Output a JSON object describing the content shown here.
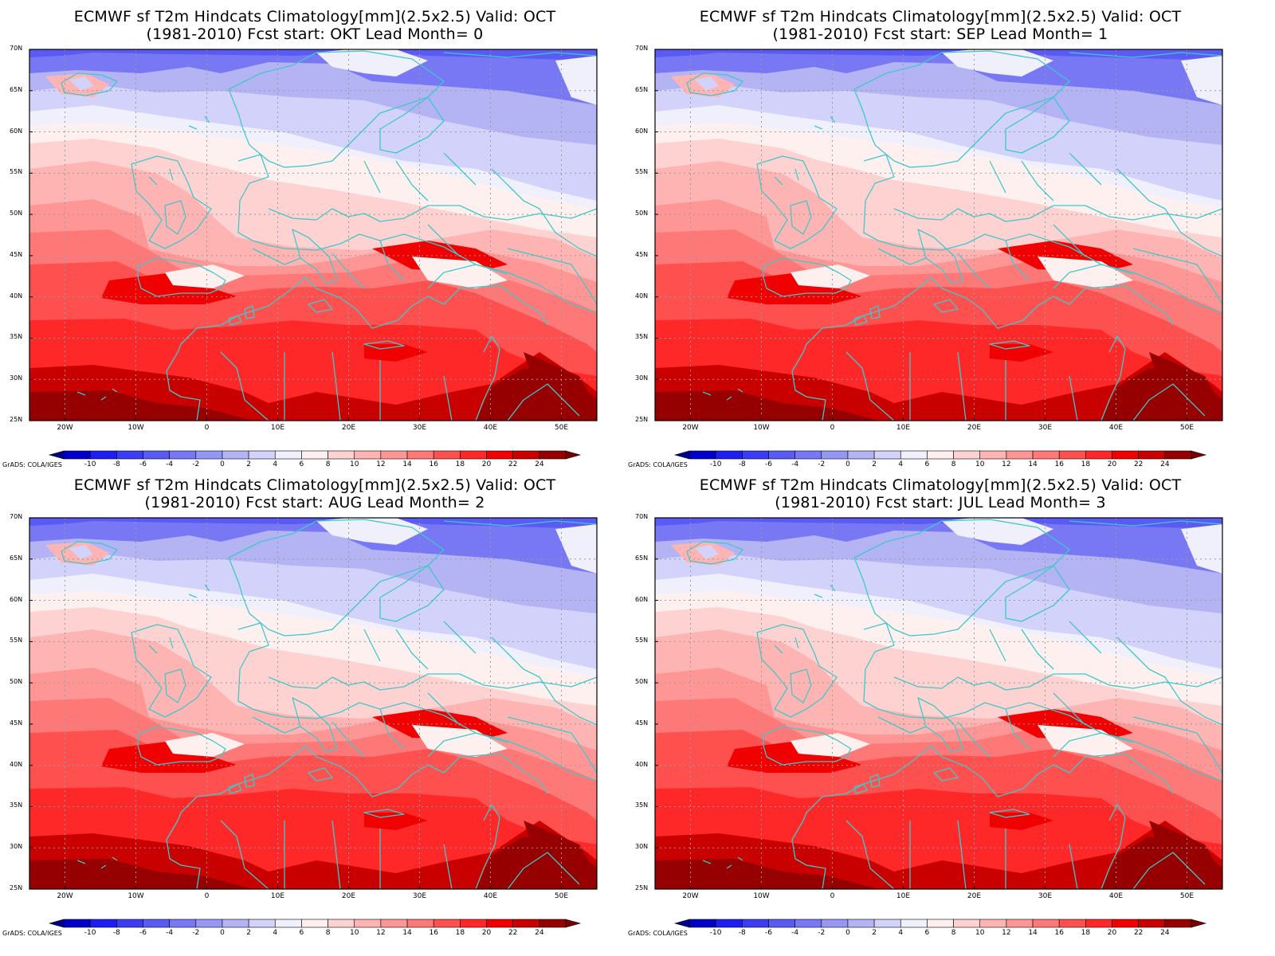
{
  "panels": [
    {
      "title_line1": "ECMWF sf T2m Hindcats Climatology[mm](2.5x2.5) Valid: OCT",
      "title_line2": "(1981-2010) Fcst start: OKT  Lead Month= 0"
    },
    {
      "title_line1": "ECMWF sf T2m Hindcats Climatology[mm](2.5x2.5) Valid: OCT",
      "title_line2": "(1981-2010) Fcst start: SEP  Lead Month= 1"
    },
    {
      "title_line1": "ECMWF sf T2m Hindcats Climatology[mm](2.5x2.5) Valid: OCT",
      "title_line2": "(1981-2010) Fcst start: AUG  Lead Month= 2"
    },
    {
      "title_line1": "ECMWF sf T2m Hindcats Climatology[mm](2.5x2.5) Valid: OCT",
      "title_line2": "(1981-2010) Fcst start: JUL  Lead Month= 3"
    }
  ],
  "credit": "GrADS: COLA/IGES",
  "lat_labels": [
    "70N",
    "65N",
    "60N",
    "55N",
    "50N",
    "45N",
    "40N",
    "35N",
    "30N",
    "25N"
  ],
  "lon_labels": [
    "20W",
    "10W",
    "0",
    "10E",
    "20E",
    "30E",
    "40E",
    "50E"
  ],
  "colorbar": {
    "labels": [
      "-10",
      "-8",
      "-6",
      "-4",
      "-2",
      "0",
      "2",
      "4",
      "6",
      "8",
      "10",
      "12",
      "14",
      "16",
      "18",
      "20",
      "22",
      "24"
    ],
    "colors": [
      "#0000c8",
      "#1e1ef0",
      "#3c3cf5",
      "#5a5af5",
      "#7878f5",
      "#9696f5",
      "#b4b4f5",
      "#d2d2fa",
      "#f0f0fc",
      "#fff0f0",
      "#ffd2d2",
      "#ffb4b4",
      "#ff9696",
      "#ff7878",
      "#ff5050",
      "#ff2828",
      "#f00000",
      "#c80000",
      "#960000"
    ],
    "end_low": "#00008c",
    "end_high": "#780000"
  },
  "map_colors": {
    "coast": "#40c8c8",
    "frame": "#000000",
    "grid": "#9a9a9a"
  }
}
